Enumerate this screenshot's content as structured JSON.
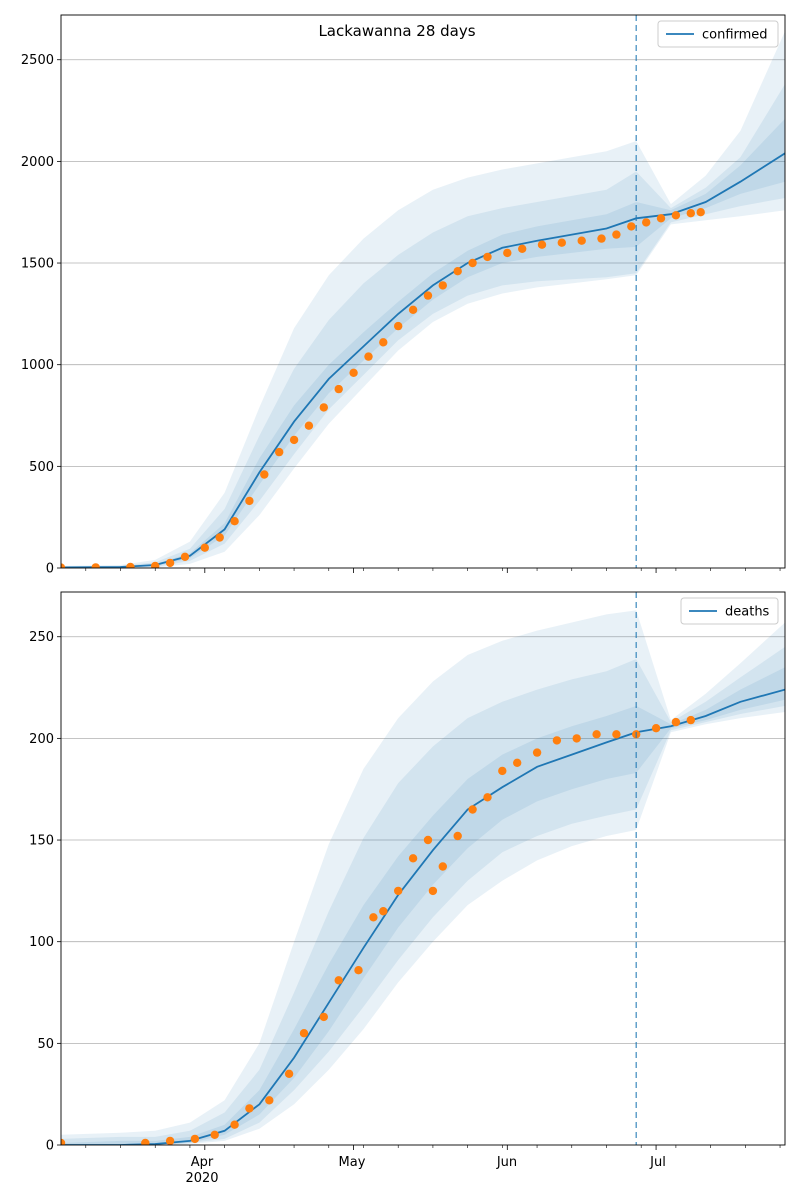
{
  "title": "Lackawanna 28 days",
  "colors": {
    "line": "#1f77b4",
    "points": "#ff7f0e",
    "band": "#1f77b4",
    "grid": "#b0b0b0",
    "vline": "#1f77b4"
  },
  "x_axis": {
    "ticks": [
      {
        "date": "2020-04-01",
        "label": "Apr"
      },
      {
        "date": "2020-05-01",
        "label": "May"
      },
      {
        "date": "2020-06-01",
        "label": "Jun"
      },
      {
        "date": "2020-07-01",
        "label": "Jul"
      }
    ],
    "year_label": "2020",
    "minor_tick_interval_days": 7
  },
  "chart_data": [
    {
      "type": "line",
      "legend": "confirmed",
      "legend_position": "top-right",
      "xlim": [
        "2020-03-03",
        "2020-07-27"
      ],
      "ylim": [
        0,
        2720
      ],
      "yticks": [
        0,
        500,
        1000,
        1500,
        2000,
        2500
      ],
      "grid": "horizontal",
      "forecast_start": "2020-06-27",
      "bands_ci": [
        "outer",
        "middle",
        "inner"
      ],
      "model_series": {
        "name": "confirmed",
        "x": [
          "2020-03-03",
          "2020-03-15",
          "2020-03-22",
          "2020-03-29",
          "2020-04-05",
          "2020-04-12",
          "2020-04-19",
          "2020-04-26",
          "2020-05-03",
          "2020-05-10",
          "2020-05-17",
          "2020-05-24",
          "2020-05-31",
          "2020-06-07",
          "2020-06-14",
          "2020-06-21",
          "2020-06-27",
          "2020-07-04",
          "2020-07-11",
          "2020-07-18",
          "2020-07-27"
        ],
        "y": [
          3,
          5,
          15,
          60,
          190,
          470,
          720,
          930,
          1090,
          1250,
          1390,
          1500,
          1575,
          1610,
          1640,
          1670,
          1720,
          1740,
          1800,
          1900,
          2040
        ],
        "bands": [
          {
            "low": [
              0,
              0,
              2,
              20,
              80,
              260,
              490,
              710,
              890,
              1070,
              1210,
              1300,
              1350,
              1380,
              1400,
              1420,
              1440,
              1690,
              1710,
              1730,
              1760
            ],
            "high": [
              10,
              15,
              40,
              130,
              370,
              790,
              1180,
              1440,
              1620,
              1760,
              1860,
              1920,
              1960,
              1990,
              2020,
              2050,
              2100,
              1790,
              1930,
              2150,
              2640
            ]
          },
          {
            "low": [
              0,
              1,
              5,
              35,
              120,
              330,
              560,
              780,
              950,
              1120,
              1250,
              1340,
              1390,
              1410,
              1420,
              1430,
              1450,
              1700,
              1740,
              1780,
              1820
            ],
            "high": [
              6,
              10,
              28,
              95,
              290,
              650,
              980,
              1220,
              1400,
              1540,
              1650,
              1730,
              1770,
              1800,
              1830,
              1860,
              1950,
              1770,
              1870,
              2020,
              2380
            ]
          },
          {
            "low": [
              1,
              2,
              9,
              48,
              160,
              410,
              650,
              860,
              1020,
              1180,
              1320,
              1430,
              1500,
              1530,
              1550,
              1570,
              1580,
              1720,
              1770,
              1840,
              1900
            ],
            "high": [
              4,
              7,
              20,
              72,
              220,
              540,
              800,
              1000,
              1160,
              1310,
              1450,
              1560,
              1640,
              1680,
              1710,
              1740,
              1800,
              1760,
              1840,
              1980,
              2210
            ]
          }
        ]
      },
      "observed_series": {
        "name": "observed",
        "x": [
          "2020-03-03",
          "2020-03-10",
          "2020-03-17",
          "2020-03-22",
          "2020-03-25",
          "2020-03-28",
          "2020-04-01",
          "2020-04-04",
          "2020-04-07",
          "2020-04-10",
          "2020-04-13",
          "2020-04-16",
          "2020-04-19",
          "2020-04-22",
          "2020-04-25",
          "2020-04-28",
          "2020-05-01",
          "2020-05-04",
          "2020-05-07",
          "2020-05-10",
          "2020-05-13",
          "2020-05-16",
          "2020-05-19",
          "2020-05-22",
          "2020-05-25",
          "2020-05-28",
          "2020-06-01",
          "2020-06-04",
          "2020-06-08",
          "2020-06-12",
          "2020-06-16",
          "2020-06-20",
          "2020-06-23",
          "2020-06-26",
          "2020-06-29",
          "2020-07-02",
          "2020-07-05",
          "2020-07-08",
          "2020-07-10"
        ],
        "y": [
          2,
          3,
          5,
          10,
          25,
          55,
          100,
          150,
          230,
          330,
          460,
          570,
          630,
          700,
          790,
          880,
          960,
          1040,
          1110,
          1190,
          1270,
          1340,
          1390,
          1460,
          1500,
          1530,
          1550,
          1570,
          1590,
          1600,
          1610,
          1620,
          1640,
          1680,
          1700,
          1720,
          1735,
          1745,
          1750
        ]
      }
    },
    {
      "type": "line",
      "legend": "deaths",
      "legend_position": "top-right",
      "xlim": [
        "2020-03-03",
        "2020-07-27"
      ],
      "ylim": [
        0,
        272
      ],
      "yticks": [
        0,
        50,
        100,
        150,
        200,
        250
      ],
      "grid": "horizontal",
      "forecast_start": "2020-06-27",
      "bands_ci": [
        "outer",
        "middle",
        "inner"
      ],
      "model_series": {
        "name": "deaths",
        "x": [
          "2020-03-03",
          "2020-03-15",
          "2020-03-22",
          "2020-03-29",
          "2020-04-05",
          "2020-04-12",
          "2020-04-19",
          "2020-04-26",
          "2020-05-03",
          "2020-05-10",
          "2020-05-17",
          "2020-05-24",
          "2020-05-31",
          "2020-06-07",
          "2020-06-14",
          "2020-06-21",
          "2020-06-27",
          "2020-07-04",
          "2020-07-11",
          "2020-07-18",
          "2020-07-27"
        ],
        "y": [
          0,
          0,
          0.5,
          2,
          7,
          20,
          43,
          70,
          97,
          123,
          145,
          165,
          176,
          186,
          192,
          198,
          203,
          206,
          211,
          218,
          224
        ],
        "bands": [
          {
            "low": [
              0,
              0,
              0,
              0.5,
              2,
              8,
              20,
              37,
              57,
              80,
              100,
              118,
              130,
              140,
              147,
              152,
              155,
              203,
              207,
              210,
              213
            ],
            "high": [
              5,
              6,
              7,
              11,
              22,
              50,
              100,
              148,
              185,
              210,
              228,
              241,
              248,
              253,
              257,
              261,
              263,
              209,
              222,
              237,
              257
            ]
          },
          {
            "low": [
              0,
              0,
              0,
              1,
              3,
              11,
              27,
              46,
              68,
              91,
              112,
              130,
              144,
              152,
              158,
              162,
              165,
              204,
              208,
              212,
              216
            ],
            "high": [
              3,
              4,
              4,
              7,
              16,
              37,
              75,
              115,
              151,
              178,
              196,
              210,
              218,
              224,
              229,
              233,
              239,
              208,
              218,
              230,
              245
            ]
          },
          {
            "low": [
              0,
              0,
              0,
              1,
              5,
              15,
              33,
              56,
              82,
              107,
              128,
              146,
              160,
              169,
              175,
              180,
              183,
              205,
              209,
              214,
              219
            ],
            "high": [
              1,
              2,
              2,
              4,
              10,
              27,
              57,
              89,
              118,
              142,
              162,
              180,
              192,
              200,
              206,
              211,
              216,
              207,
              214,
              224,
              235
            ]
          }
        ]
      },
      "observed_series": {
        "name": "observed",
        "x": [
          "2020-03-03",
          "2020-03-20",
          "2020-03-25",
          "2020-03-30",
          "2020-04-03",
          "2020-04-07",
          "2020-04-10",
          "2020-04-14",
          "2020-04-18",
          "2020-04-21",
          "2020-04-25",
          "2020-04-28",
          "2020-05-02",
          "2020-05-05",
          "2020-05-07",
          "2020-05-10",
          "2020-05-13",
          "2020-05-16",
          "2020-05-17",
          "2020-05-19",
          "2020-05-22",
          "2020-05-25",
          "2020-05-28",
          "2020-05-31",
          "2020-06-03",
          "2020-06-07",
          "2020-06-11",
          "2020-06-15",
          "2020-06-19",
          "2020-06-23",
          "2020-06-27",
          "2020-07-01",
          "2020-07-05",
          "2020-07-08"
        ],
        "y": [
          1,
          1,
          2,
          3,
          5,
          10,
          18,
          22,
          35,
          55,
          63,
          81,
          86,
          112,
          115,
          125,
          141,
          150,
          125,
          137,
          152,
          165,
          171,
          184,
          188,
          193,
          199,
          200,
          202,
          202,
          202,
          205,
          208,
          209
        ]
      }
    }
  ]
}
